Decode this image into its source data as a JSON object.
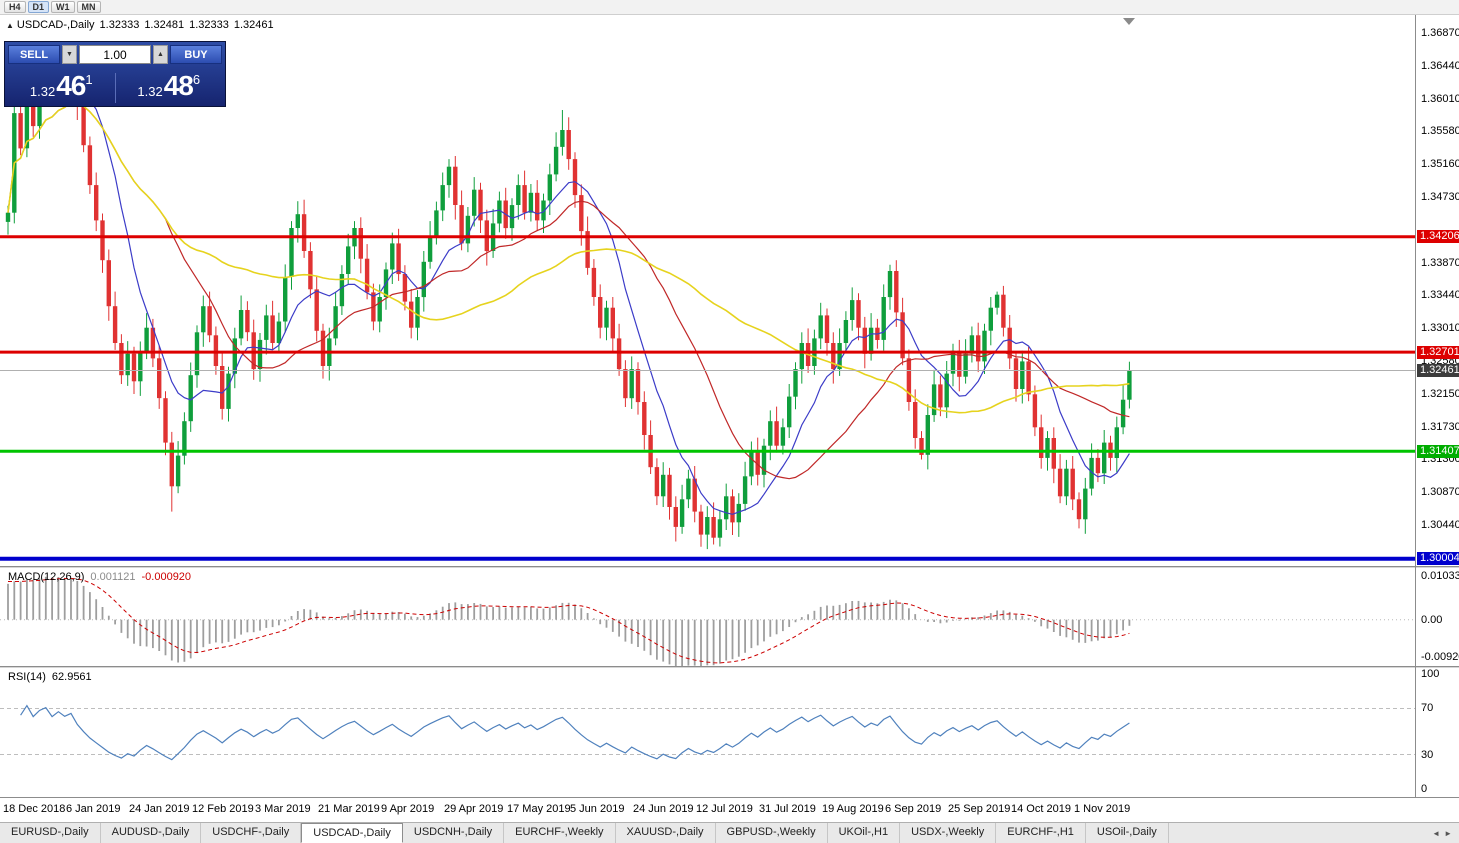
{
  "toolbar": {
    "timeframes": [
      "H4",
      "D1",
      "W1",
      "MN"
    ],
    "active": "D1"
  },
  "chart_header": {
    "collapse_icon": "▲",
    "symbol": "USDCAD-,Daily",
    "open": "1.32333",
    "high": "1.32481",
    "low": "1.32333",
    "close": "1.32461"
  },
  "trade_panel": {
    "sell_label": "SELL",
    "buy_label": "BUY",
    "volume": "1.00",
    "spin_down": "▼",
    "spin_up": "▲",
    "sell_price": {
      "prefix": "1.32",
      "big": "46",
      "sup": "1"
    },
    "buy_price": {
      "prefix": "1.32",
      "big": "48",
      "sup": "6"
    }
  },
  "price_scale": [
    "1.36870",
    "1.36440",
    "1.36010",
    "1.35580",
    "1.35160",
    "1.34730",
    "1.33870",
    "1.33440",
    "1.33010",
    "1.32580",
    "1.32150",
    "1.31730",
    "1.31300",
    "1.30870",
    "1.30440"
  ],
  "macd": {
    "label": "MACD(12,26,9)",
    "value1": "0.001121",
    "value2": "-0.000920",
    "scale_top": "0.010331",
    "scale_mid": "0.00",
    "scale_bottom": "-0.009201",
    "params": {
      "fast": 12,
      "slow": 26,
      "signal": 9
    },
    "range": [
      -0.0093,
      0.0104
    ]
  },
  "rsi": {
    "label": "RSI(14)",
    "value": "62.9561",
    "scale": [
      "100",
      "70",
      "30",
      "0"
    ],
    "period": 14,
    "levels": [
      70,
      30
    ]
  },
  "tabs": {
    "items": [
      "EURUSD-,Daily",
      "AUDUSD-,Daily",
      "USDCHF-,Daily",
      "USDCAD-,Daily",
      "USDCNH-,Daily",
      "EURCHF-,Weekly",
      "XAUUSD-,Daily",
      "GBPUSD-,Weekly",
      "UKOil-,H1",
      "USDX-,Weekly",
      "EURCHF-,H1",
      "USOil-,Daily"
    ],
    "active_index": 3,
    "scroll_left": "◄",
    "scroll_right": "►"
  },
  "colors": {
    "up": "#0f9e3c",
    "down": "#e03232",
    "ma_fast": "#3c3cc8",
    "ma_mid": "#c02828",
    "ma_slow": "#e6d31e",
    "macd_hist": "#9e9e9e",
    "macd_signal": "#cc0000",
    "rsi_line": "#4f81bd",
    "line_red": "#dd0000",
    "line_green": "#00c400",
    "line_blue": "#0000cd",
    "bid_box": "#3c3c3c"
  },
  "chart_data": {
    "type": "candlestick",
    "title": "USDCAD-,Daily",
    "x_labels": [
      "18 Dec 2018",
      "6 Jan 2019",
      "24 Jan 2019",
      "12 Feb 2019",
      "3 Mar 2019",
      "21 Mar 2019",
      "9 Apr 2019",
      "29 Apr 2019",
      "17 May 2019",
      "5 Jun 2019",
      "24 Jun 2019",
      "12 Jul 2019",
      "31 Jul 2019",
      "19 Aug 2019",
      "6 Sep 2019",
      "25 Sep 2019",
      "14 Oct 2019",
      "1 Nov 2019"
    ],
    "x_label_offset": 3,
    "x_label_every": 10,
    "ylim": [
      1.2991,
      1.371
    ],
    "open_first": 1.344,
    "closes": [
      1.3452,
      1.3582,
      1.3536,
      1.361,
      1.3565,
      1.3618,
      1.3648,
      1.3605,
      1.3652,
      1.3628,
      1.3655,
      1.3592,
      1.354,
      1.3488,
      1.3442,
      1.339,
      1.333,
      1.3282,
      1.324,
      1.3268,
      1.3232,
      1.327,
      1.3302,
      1.3262,
      1.321,
      1.3152,
      1.3095,
      1.3135,
      1.318,
      1.324,
      1.3296,
      1.333,
      1.3292,
      1.3252,
      1.3196,
      1.3242,
      1.3288,
      1.3325,
      1.3296,
      1.3248,
      1.3286,
      1.3318,
      1.3282,
      1.331,
      1.3368,
      1.3432,
      1.345,
      1.3402,
      1.3352,
      1.3298,
      1.3252,
      1.3288,
      1.333,
      1.3372,
      1.3408,
      1.3432,
      1.3392,
      1.3348,
      1.331,
      1.3342,
      1.3378,
      1.3412,
      1.3372,
      1.3336,
      1.3302,
      1.3342,
      1.3388,
      1.3422,
      1.3455,
      1.3488,
      1.3512,
      1.3462,
      1.3412,
      1.3448,
      1.3482,
      1.3442,
      1.3402,
      1.3438,
      1.3468,
      1.3432,
      1.3462,
      1.3488,
      1.3452,
      1.3478,
      1.3442,
      1.3468,
      1.3502,
      1.3538,
      1.356,
      1.3522,
      1.3475,
      1.3428,
      1.338,
      1.3342,
      1.3302,
      1.3328,
      1.3288,
      1.3248,
      1.321,
      1.3248,
      1.3205,
      1.3162,
      1.312,
      1.3082,
      1.311,
      1.3068,
      1.3042,
      1.3078,
      1.3105,
      1.3062,
      1.3032,
      1.3055,
      1.3028,
      1.3052,
      1.3082,
      1.3048,
      1.3072,
      1.3108,
      1.3142,
      1.311,
      1.3148,
      1.318,
      1.3148,
      1.3172,
      1.3212,
      1.3248,
      1.3282,
      1.3252,
      1.3288,
      1.3318,
      1.3282,
      1.3248,
      1.3282,
      1.3312,
      1.3338,
      1.3302,
      1.3268,
      1.3302,
      1.3286,
      1.3342,
      1.3376,
      1.3322,
      1.3262,
      1.3205,
      1.3158,
      1.3136,
      1.3188,
      1.3228,
      1.3198,
      1.3242,
      1.3272,
      1.3238,
      1.3268,
      1.3292,
      1.3258,
      1.3298,
      1.3328,
      1.3345,
      1.3302,
      1.3262,
      1.3222,
      1.3258,
      1.3215,
      1.3172,
      1.3132,
      1.3158,
      1.3118,
      1.3082,
      1.3118,
      1.3078,
      1.3052,
      1.3092,
      1.3132,
      1.3112,
      1.3152,
      1.3132,
      1.3172,
      1.3208,
      1.32461
    ],
    "spikes": {
      "1": [
        1.3622,
        1.3438
      ],
      "10": [
        1.3664,
        null
      ],
      "26": [
        null,
        1.3062
      ],
      "46": [
        1.3467,
        null
      ],
      "70": [
        1.3522,
        null
      ],
      "88": [
        1.3586,
        null
      ],
      "110": [
        null,
        1.3016
      ],
      "140": [
        1.3384,
        null
      ],
      "145": [
        null,
        1.313
      ],
      "157": [
        1.3349,
        null
      ],
      "170": [
        null,
        1.304
      ]
    },
    "moving_averages": [
      {
        "period": 10,
        "color_key": "ma_fast"
      },
      {
        "period": 25,
        "color_key": "ma_mid"
      },
      {
        "period": 55,
        "color_key": "ma_slow"
      }
    ],
    "hlines": [
      {
        "price": 1.34206,
        "label": "1.34206",
        "color": "#dd0000",
        "width": 3,
        "label_bg": "#dd0000"
      },
      {
        "price": 1.32701,
        "label": "1.32701",
        "color": "#dd0000",
        "width": 3,
        "label_bg": "#dd0000"
      },
      {
        "price": 1.32461,
        "label": "1.32461",
        "color": "#b0b0b0",
        "width": 1,
        "label_bg": "#3c3c3c"
      },
      {
        "price": 1.31407,
        "label": "1.31407",
        "color": "#00c400",
        "width": 3,
        "label_bg": "#00ad00"
      },
      {
        "price": 1.30004,
        "label": "1.30004",
        "color": "#0000cd",
        "width": 4,
        "label_bg": "#0000cd"
      }
    ]
  }
}
